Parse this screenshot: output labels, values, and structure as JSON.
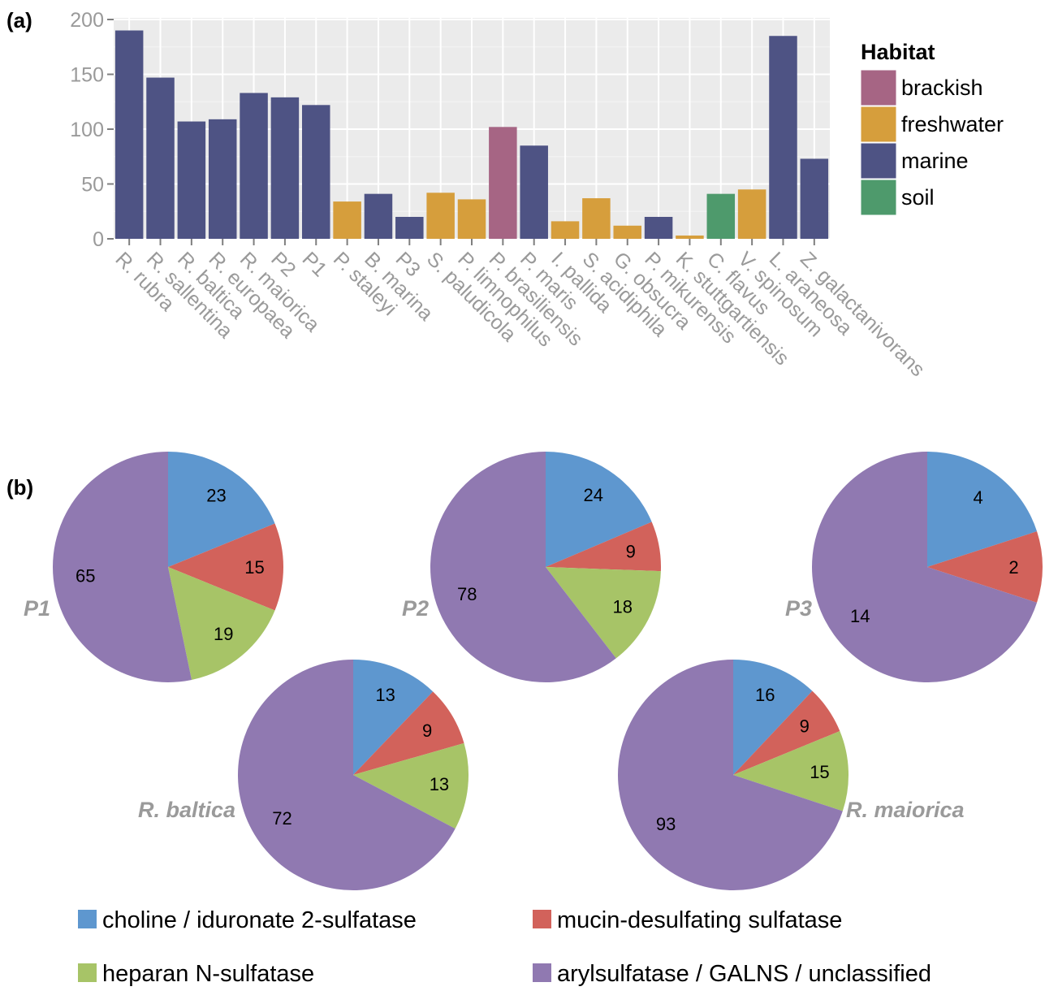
{
  "panel_a": {
    "label": "(a)",
    "chart_data": {
      "type": "bar",
      "categories": [
        "R. rubra",
        "R. sallentina",
        "R. baltica",
        "R. europaea",
        "R. maiorica",
        "P2",
        "P1",
        "P. staleyi",
        "B. marina",
        "P3",
        "S. paludicola",
        "P. limnophilus",
        "P. brasiliensis",
        "P. maris",
        "I. pallida",
        "S. acidiphila",
        "G. obsucra",
        "P. mikurensis",
        "K. stuttgartiensis",
        "C. flavus",
        "V. spinosum",
        "L. araneosa",
        "Z. galactanivorans"
      ],
      "values": [
        190,
        147,
        107,
        109,
        133,
        129,
        122,
        34,
        41,
        20,
        42,
        36,
        102,
        85,
        16,
        37,
        12,
        20,
        3,
        41,
        45,
        185,
        73
      ],
      "habitat": [
        "marine",
        "marine",
        "marine",
        "marine",
        "marine",
        "marine",
        "marine",
        "freshwater",
        "marine",
        "marine",
        "freshwater",
        "freshwater",
        "brackish",
        "marine",
        "freshwater",
        "freshwater",
        "freshwater",
        "marine",
        "freshwater",
        "soil",
        "freshwater",
        "marine",
        "marine"
      ],
      "ylim": [
        0,
        200
      ],
      "yticks": [
        0,
        50,
        100,
        150,
        200
      ],
      "xlabel": "",
      "ylabel": "",
      "grid": true,
      "legend": {
        "title": "Habitat",
        "placement": "right",
        "entries": [
          {
            "name": "brackish",
            "color": "#A66584"
          },
          {
            "name": "freshwater",
            "color": "#D69E3C"
          },
          {
            "name": "marine",
            "color": "#4E5384"
          },
          {
            "name": "soil",
            "color": "#4E9A6C"
          }
        ]
      }
    }
  },
  "panel_b": {
    "label": "(b)",
    "chart_data": {
      "type": "pie",
      "categories": [
        "choline / iduronate 2-sulfatase",
        "mucin-desulfating sulfatase",
        "heparan N-sulfatase",
        "arylsulfatase / GALNS / unclassified"
      ],
      "colors": [
        "#5E97CF",
        "#D2625B",
        "#A7C467",
        "#9079B1"
      ],
      "pies": [
        {
          "name": "P1",
          "values": [
            23,
            15,
            19,
            65
          ]
        },
        {
          "name": "P2",
          "values": [
            24,
            9,
            18,
            78
          ]
        },
        {
          "name": "P3",
          "values": [
            4,
            2,
            0,
            14
          ]
        },
        {
          "name": "R. baltica",
          "values": [
            13,
            9,
            13,
            72
          ]
        },
        {
          "name": "R. maiorica",
          "values": [
            16,
            9,
            15,
            93
          ]
        }
      ],
      "legend": {
        "placement": "bottom"
      }
    }
  }
}
